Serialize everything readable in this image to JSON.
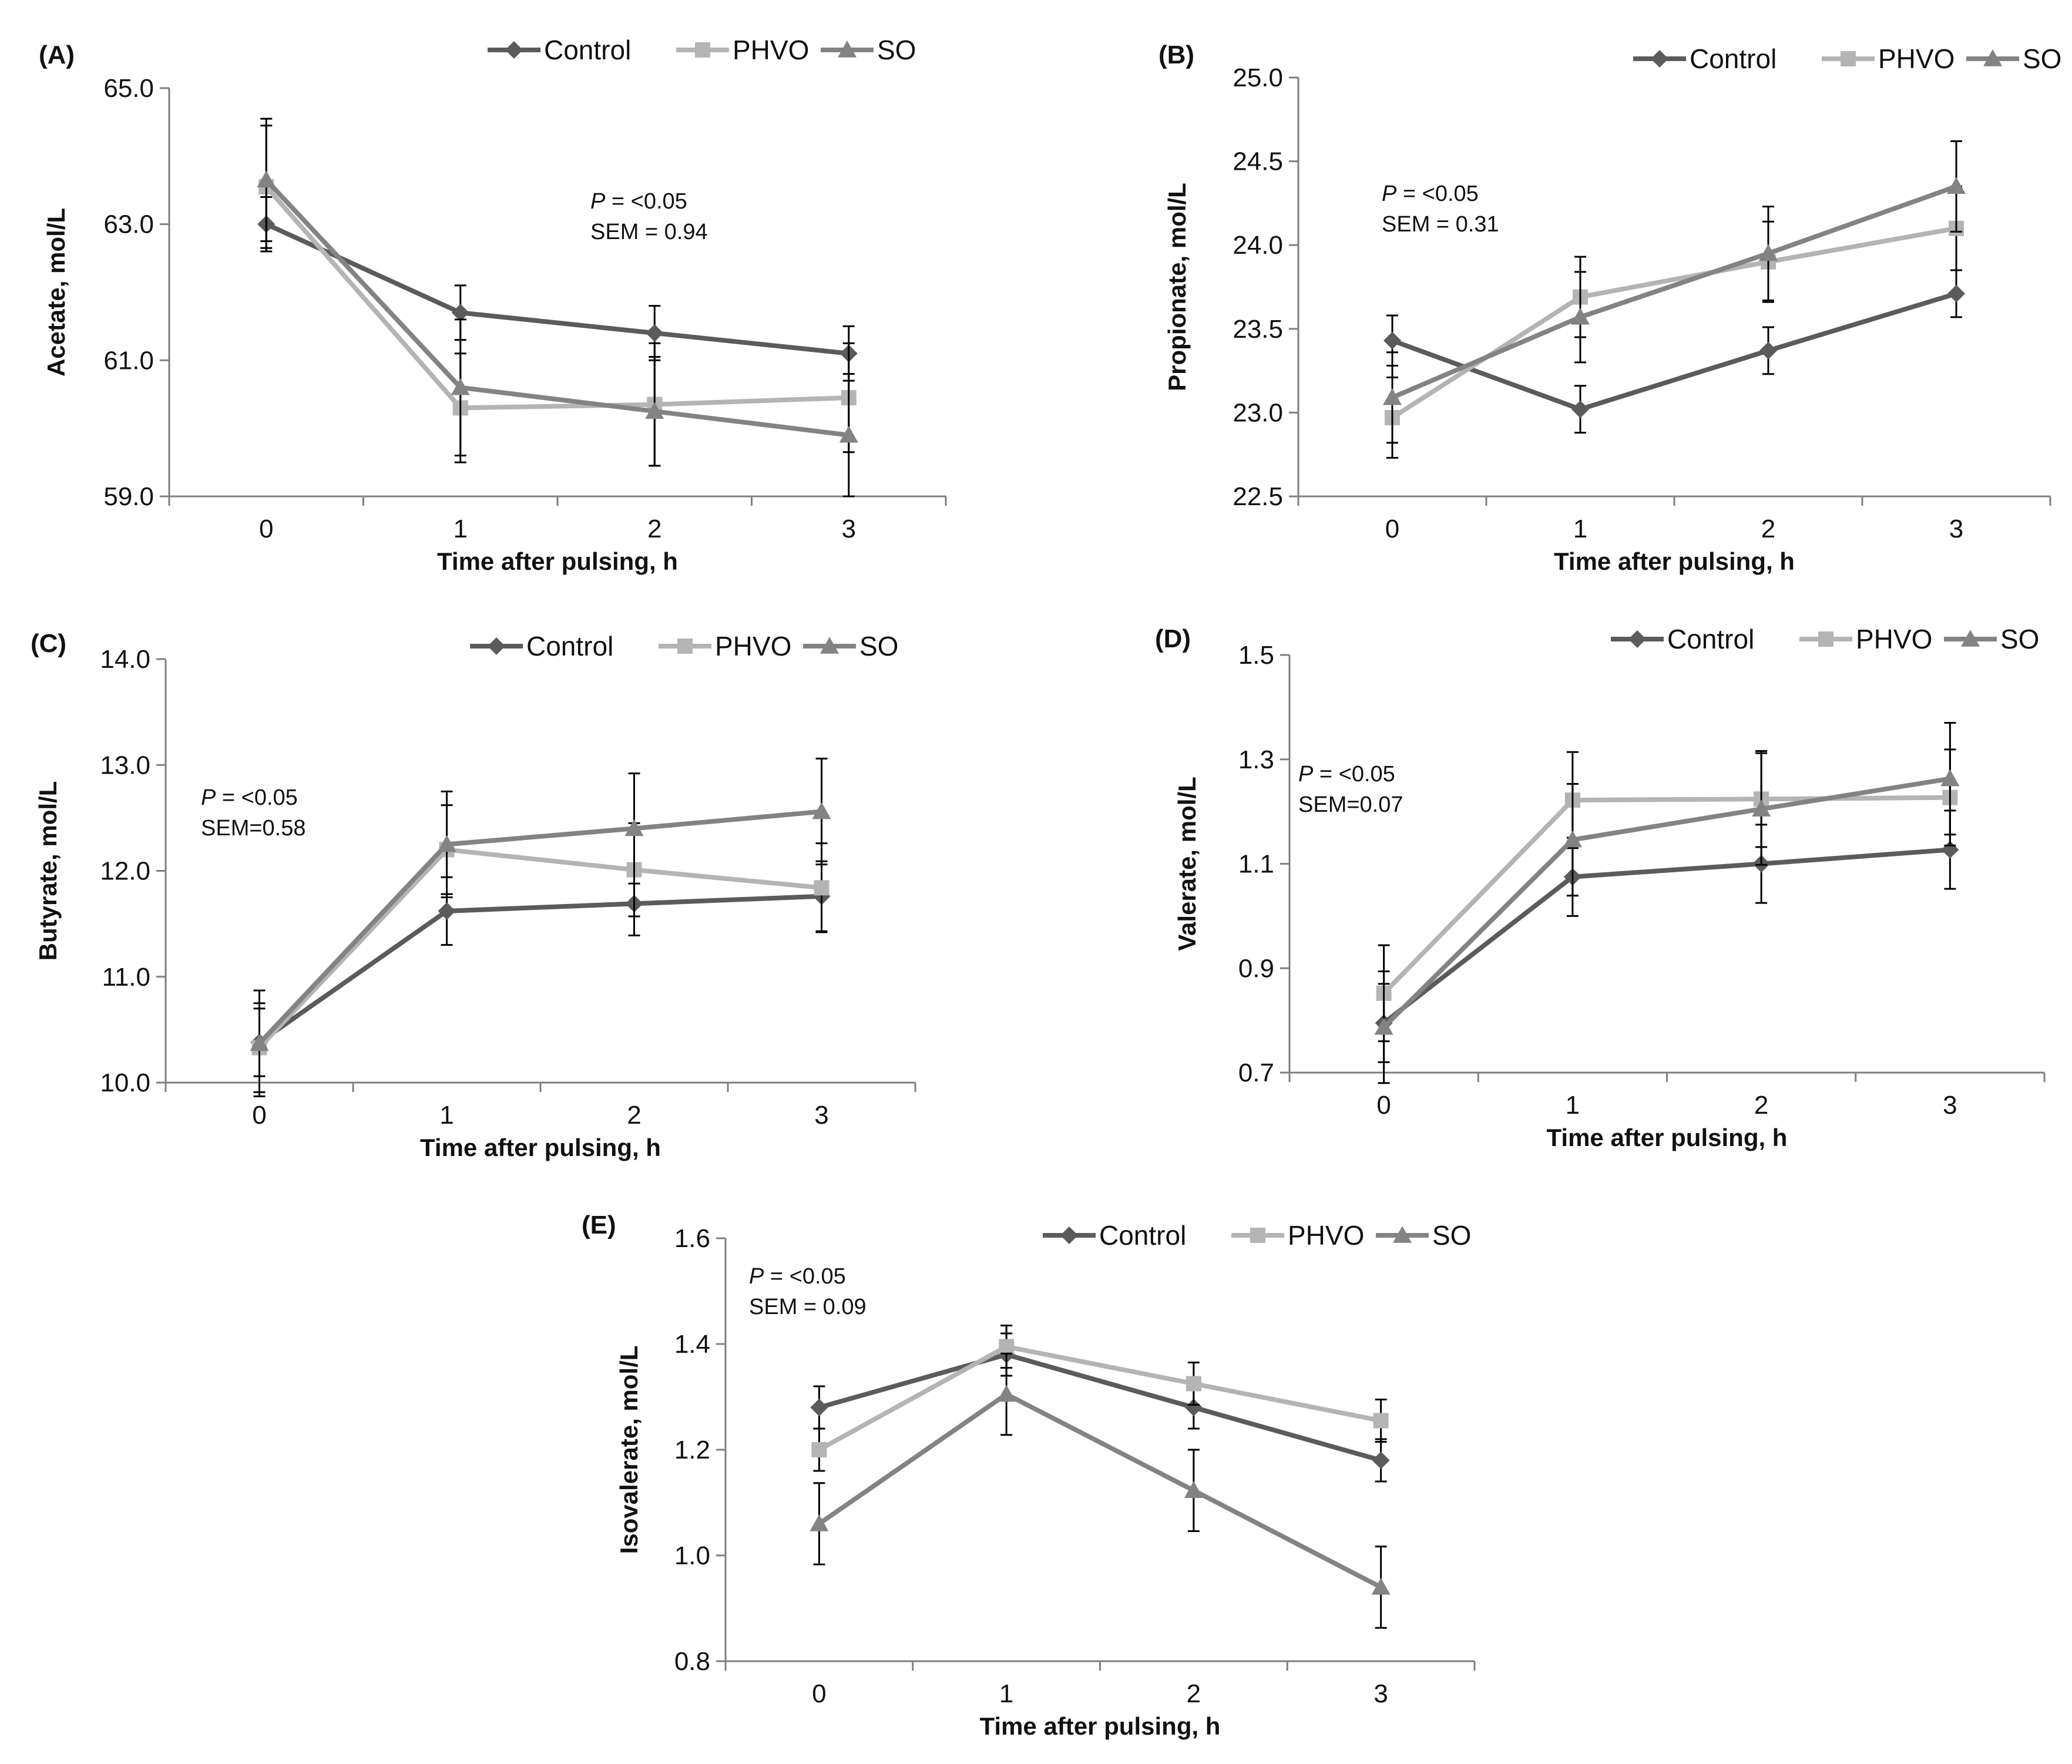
{
  "colors": {
    "Control": "#5b5b5b",
    "PHVO": "#b4b4b4",
    "SO": "#838383",
    "axis": "#7f7f7f",
    "error_bar": "#000000",
    "text": "#111111"
  },
  "chart_data": [
    {
      "type": "line",
      "panel": "(A)",
      "ylabel": "Acetate, mol/L",
      "xlabel": "Time after pulsing, h",
      "categories": [
        "0",
        "1",
        "2",
        "3"
      ],
      "ylim": [
        59.0,
        65.0
      ],
      "yticks": [
        "59.0",
        "61.0",
        "63.0",
        "65.0"
      ],
      "legend": [
        "Control",
        "PHVO",
        "SO"
      ],
      "legend_position": "top-right",
      "stat_p_label": "P",
      "stat_p_value": " = <0.05",
      "stat_sem": "SEM = 0.94",
      "series": [
        {
          "name": "Control",
          "values": [
            63.0,
            61.7,
            61.4,
            61.1
          ],
          "marker": "diamond",
          "errors": [
            0.4,
            0.4,
            0.4,
            0.4
          ]
        },
        {
          "name": "PHVO",
          "values": [
            63.55,
            60.3,
            60.35,
            60.45
          ],
          "marker": "square",
          "errors": [
            0.9,
            0.8,
            0.9,
            0.8
          ]
        },
        {
          "name": "SO",
          "values": [
            63.65,
            60.6,
            60.25,
            59.9
          ],
          "marker": "triangle",
          "errors": [
            0.9,
            1.0,
            0.8,
            0.9
          ]
        }
      ]
    },
    {
      "type": "line",
      "panel": "(B)",
      "ylabel": "Propionate, mol/L",
      "xlabel": "Time after pulsing, h",
      "categories": [
        "0",
        "1",
        "2",
        "3"
      ],
      "ylim": [
        22.5,
        25.0
      ],
      "yticks": [
        "22.5",
        "23.0",
        "23.5",
        "24.0",
        "24.5",
        "25.0"
      ],
      "legend": [
        "Control",
        "PHVO",
        "SO"
      ],
      "legend_position": "top-right",
      "stat_p_label": "P",
      "stat_p_value": " = <0.05",
      "stat_sem": "SEM = 0.31",
      "series": [
        {
          "name": "Control",
          "values": [
            23.43,
            23.02,
            23.37,
            23.71
          ],
          "marker": "diamond",
          "errors": [
            0.15,
            0.14,
            0.14,
            0.14
          ]
        },
        {
          "name": "PHVO",
          "values": [
            22.97,
            23.69,
            23.9,
            24.1
          ],
          "marker": "square",
          "errors": [
            0.24,
            0.24,
            0.24,
            0.25
          ]
        },
        {
          "name": "SO",
          "values": [
            23.09,
            23.57,
            23.95,
            24.35
          ],
          "marker": "triangle",
          "errors": [
            0.27,
            0.27,
            0.28,
            0.27
          ]
        }
      ]
    },
    {
      "type": "line",
      "panel": "(C)",
      "ylabel": "Butyrate, mol/L",
      "xlabel": "Time after pulsing, h",
      "categories": [
        "0",
        "1",
        "2",
        "3"
      ],
      "ylim": [
        10.0,
        14.0
      ],
      "yticks": [
        "10.0",
        "11.0",
        "12.0",
        "13.0",
        "14.0"
      ],
      "legend": [
        "Control",
        "PHVO",
        "SO"
      ],
      "legend_position": "top-right",
      "stat_p_label": "P",
      "stat_p_value": " = <0.05",
      "stat_sem": "SEM=0.58",
      "series": [
        {
          "name": "Control",
          "values": [
            10.38,
            11.62,
            11.69,
            11.76
          ],
          "marker": "diamond",
          "errors": [
            0.32,
            0.32,
            0.3,
            0.33
          ]
        },
        {
          "name": "PHVO",
          "values": [
            10.33,
            12.2,
            12.01,
            11.84
          ],
          "marker": "square",
          "errors": [
            0.42,
            0.42,
            0.44,
            0.42
          ]
        },
        {
          "name": "SO",
          "values": [
            10.37,
            12.25,
            12.4,
            12.56
          ],
          "marker": "triangle",
          "errors": [
            0.5,
            0.5,
            0.52,
            0.5
          ]
        }
      ]
    },
    {
      "type": "line",
      "panel": "(D)",
      "ylabel": "Valerate, mol/L",
      "xlabel": "Time after pulsing, h",
      "categories": [
        "0",
        "1",
        "2",
        "3"
      ],
      "ylim": [
        0.7,
        1.5
      ],
      "yticks": [
        "0.7",
        "0.9",
        "1.1",
        "1.3",
        "1.5"
      ],
      "legend": [
        "Control",
        "PHVO",
        "SO"
      ],
      "legend_position": "top-right",
      "stat_p_label": "P",
      "stat_p_value": " = <0.05",
      "stat_sem": "SEM=0.07",
      "series": [
        {
          "name": "Control",
          "values": [
            0.795,
            1.075,
            1.1,
            1.127
          ],
          "marker": "diamond",
          "errors": [
            0.075,
            0.075,
            0.075,
            0.075
          ]
        },
        {
          "name": "PHVO",
          "values": [
            0.852,
            1.222,
            1.224,
            1.227
          ],
          "marker": "square",
          "errors": [
            0.092,
            0.092,
            0.092,
            0.092
          ]
        },
        {
          "name": "SO",
          "values": [
            0.787,
            1.146,
            1.205,
            1.263
          ],
          "marker": "triangle",
          "errors": [
            0.107,
            0.107,
            0.107,
            0.107
          ]
        }
      ]
    },
    {
      "type": "line",
      "panel": "(E)",
      "ylabel": "Isovalerate, mol/L",
      "xlabel": "Time after pulsing, h",
      "categories": [
        "0",
        "1",
        "2",
        "3"
      ],
      "ylim": [
        0.8,
        1.6
      ],
      "yticks": [
        "0.8",
        "1.0",
        "1.2",
        "1.4",
        "1.6"
      ],
      "legend": [
        "Control",
        "PHVO",
        "SO"
      ],
      "legend_position": "top-right",
      "stat_p_label": "P",
      "stat_p_value": " = <0.05",
      "stat_sem": "SEM = 0.09",
      "series": [
        {
          "name": "Control",
          "values": [
            1.28,
            1.38,
            1.28,
            1.18
          ],
          "marker": "diamond",
          "errors": [
            0.04,
            0.04,
            0.04,
            0.04
          ]
        },
        {
          "name": "PHVO",
          "values": [
            1.2,
            1.395,
            1.325,
            1.255
          ],
          "marker": "square",
          "errors": [
            0.04,
            0.04,
            0.04,
            0.04
          ]
        },
        {
          "name": "SO",
          "values": [
            1.06,
            1.305,
            1.123,
            0.94
          ],
          "marker": "triangle",
          "errors": [
            0.077,
            0.077,
            0.077,
            0.077
          ]
        }
      ]
    }
  ]
}
